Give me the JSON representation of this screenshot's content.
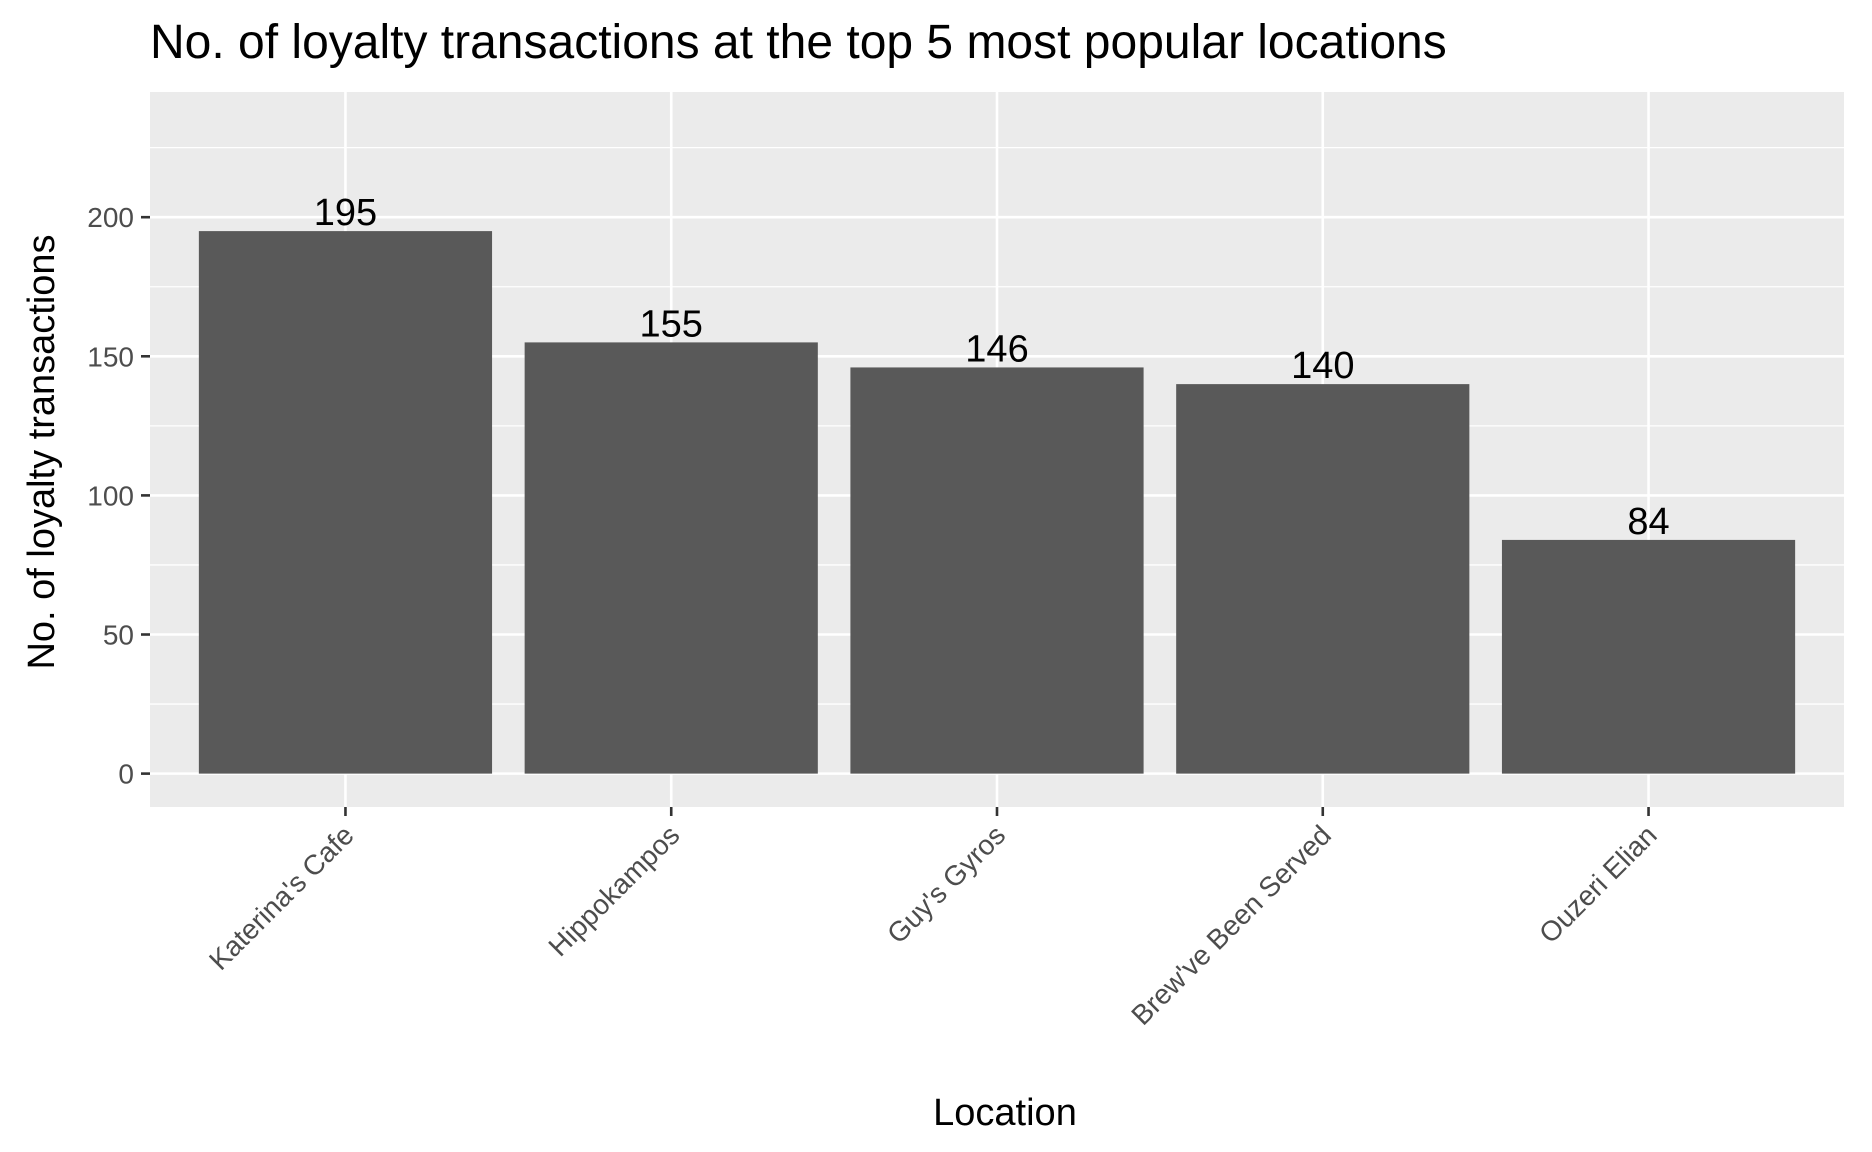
{
  "chart_data": {
    "type": "bar",
    "title": "No. of loyalty transactions at the top 5 most popular locations",
    "xlabel": "Location",
    "ylabel": "No. of loyalty transactions",
    "categories": [
      "Katerina's Cafe",
      "Hippokampos",
      "Guy's Gyros",
      "Brew've Been Served",
      "Ouzeri Elian"
    ],
    "values": [
      195,
      155,
      146,
      140,
      84
    ],
    "data_labels": [
      "195",
      "155",
      "146",
      "140",
      "84"
    ],
    "ylim": [
      -12,
      245
    ],
    "y_ticks": [
      0,
      50,
      100,
      150,
      200
    ],
    "y_tick_labels": [
      "0",
      "50",
      "100",
      "150",
      "200"
    ],
    "y_minor_ticks": [
      25,
      75,
      125,
      175,
      225
    ],
    "grid": true,
    "legend": "none",
    "colors": {
      "bar": "#595959",
      "panel": "#ebebeb",
      "grid": "#ffffff"
    }
  }
}
